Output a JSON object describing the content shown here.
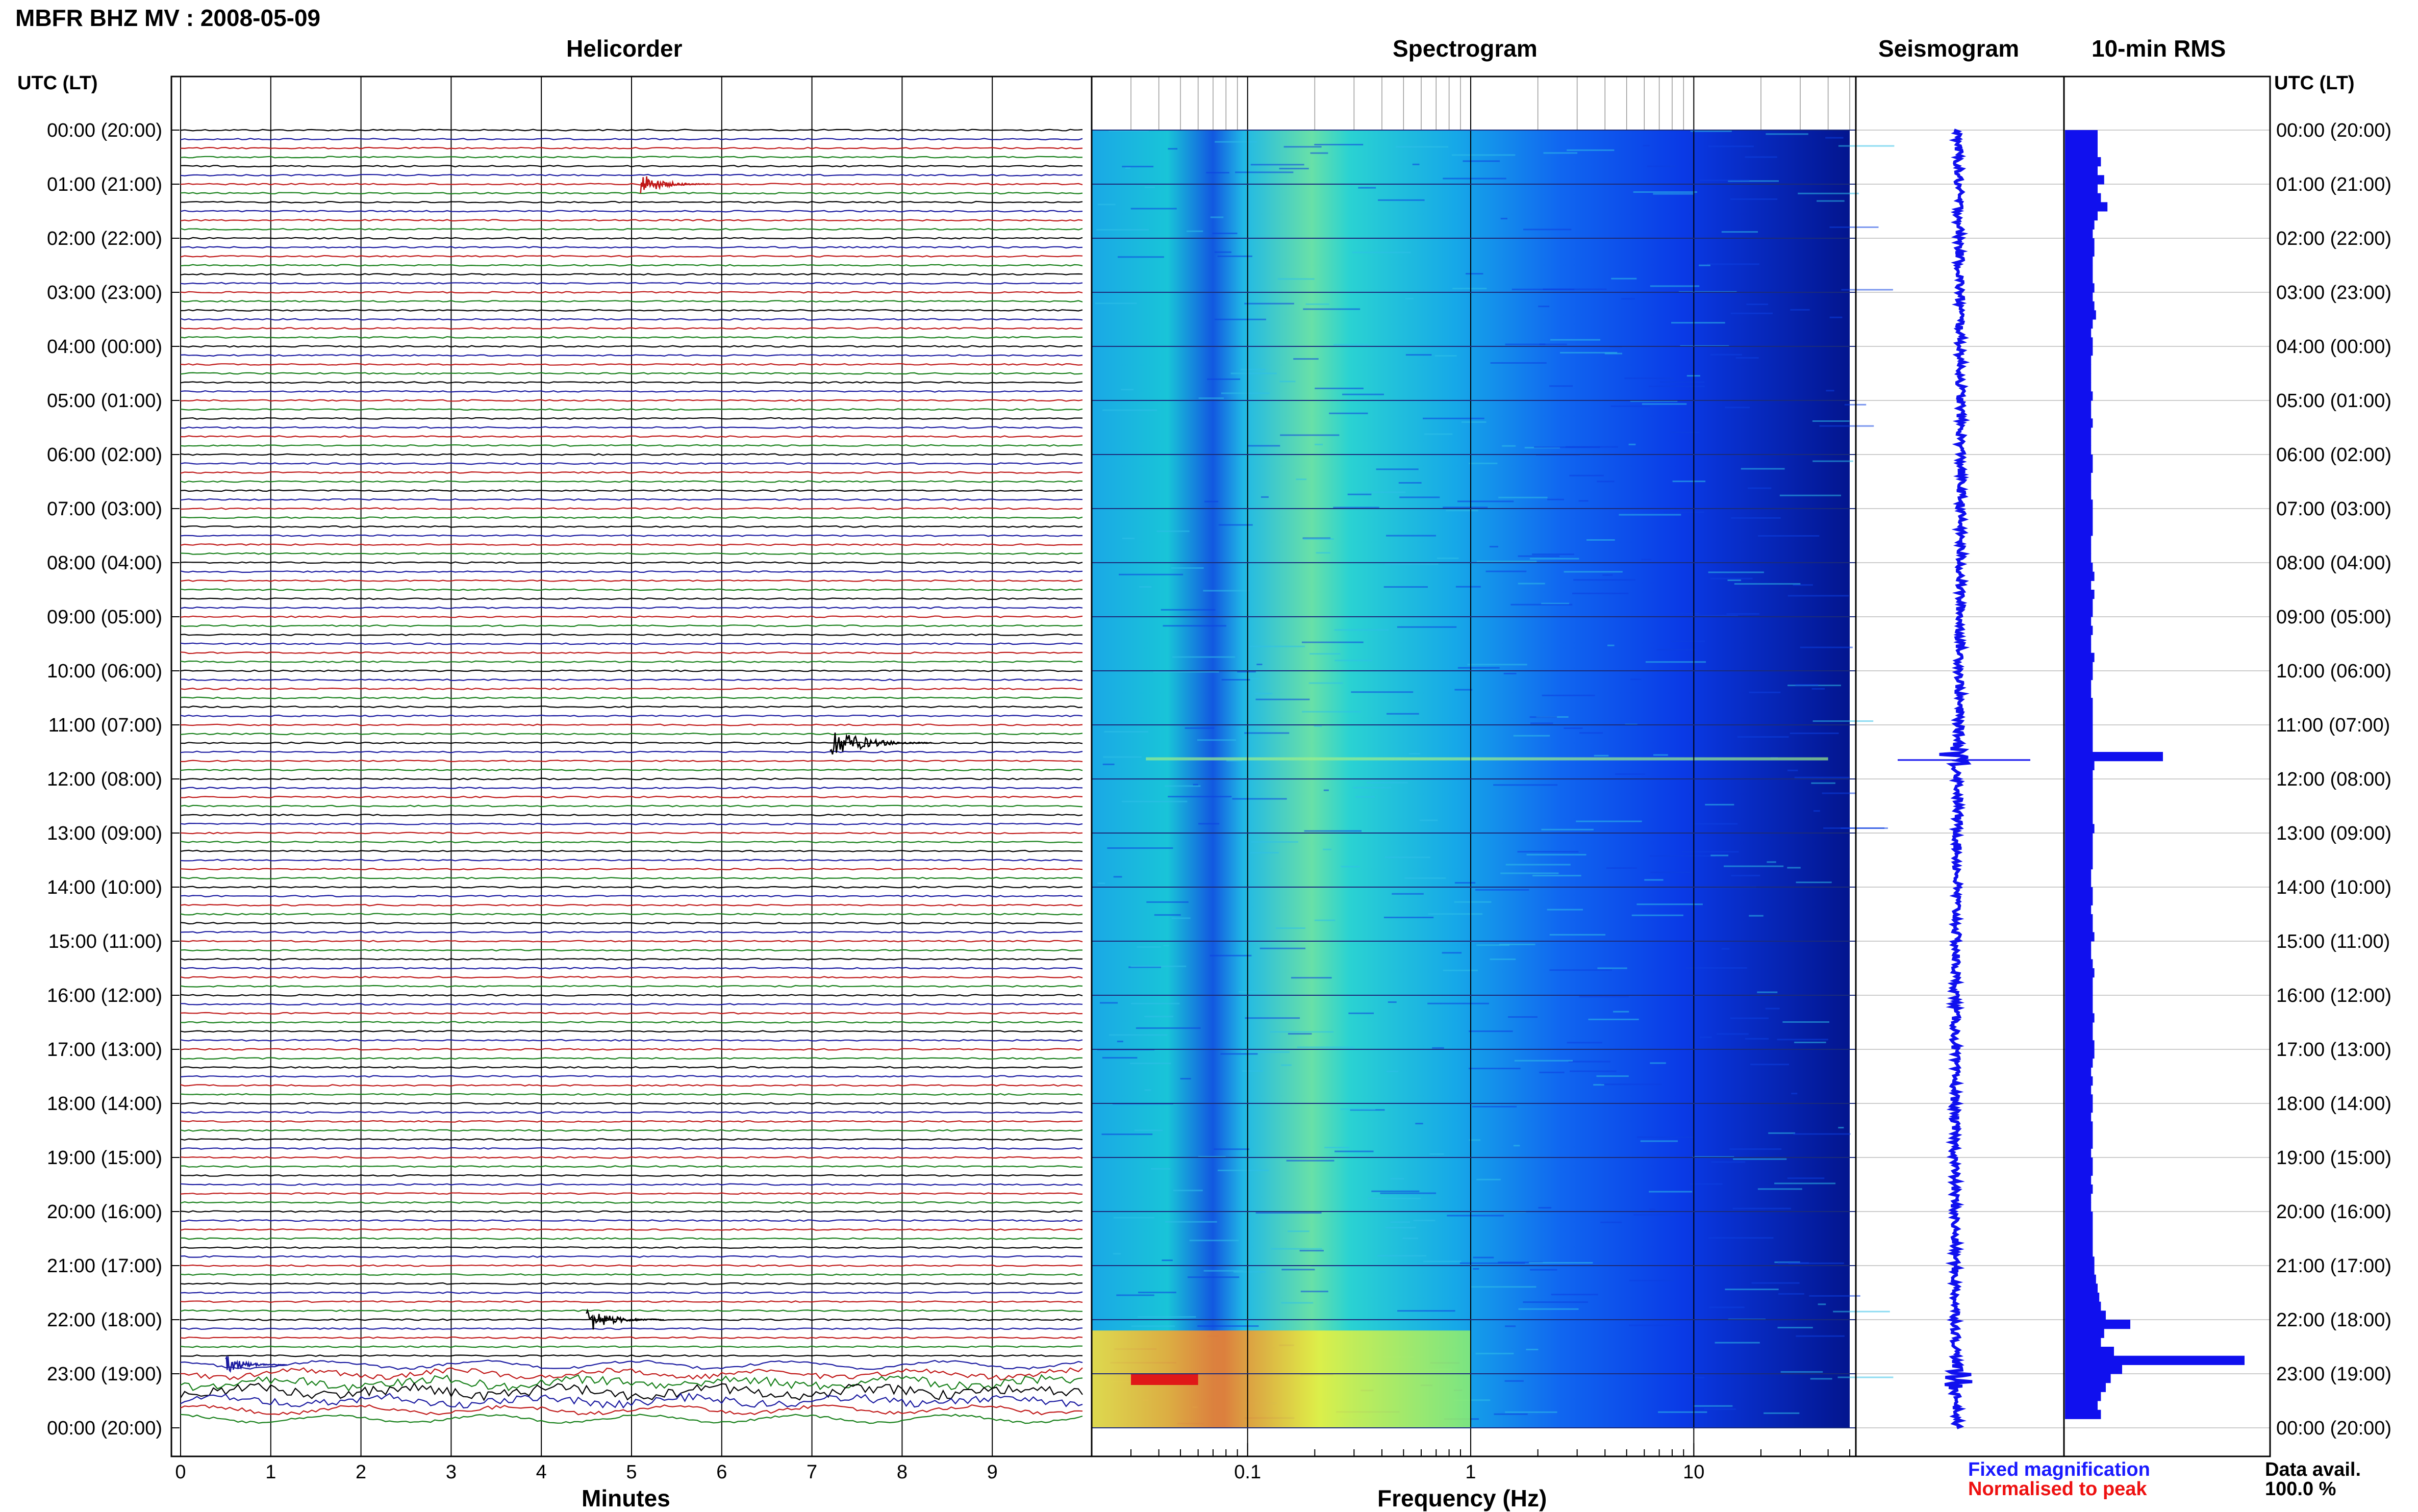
{
  "header": {
    "station_title": "MBFR BHZ MV : 2008-05-09"
  },
  "panels": {
    "helicorder": "Helicorder",
    "spectrogram": "Spectrogram",
    "seismogram": "Seismogram",
    "rms": "10-min RMS"
  },
  "axes": {
    "time_header": "UTC (LT)",
    "minutes_label": "Minutes",
    "frequency_label": "Frequency (Hz)"
  },
  "legend": {
    "fixed": "Fixed magnification",
    "normalised": "Normalised to peak",
    "avail_label": "Data avail.",
    "avail_value": "100.0 %"
  },
  "colors": {
    "fixed": "#1a1aff",
    "normalised": "#ee1111",
    "rms": "#1010ee",
    "trace_cycle": [
      "#000000",
      "#1a1aa0",
      "#c01818",
      "#18801a"
    ]
  },
  "chart_data": [
    {
      "type": "line",
      "name": "helicorder",
      "xlabel": "Minutes",
      "x_ticks": [
        0,
        1,
        2,
        3,
        4,
        5,
        6,
        7,
        8,
        9
      ],
      "xlim": [
        0,
        10
      ],
      "y_ticks": [
        "00:00 (20:00)",
        "01:00 (21:00)",
        "02:00 (22:00)",
        "03:00 (23:00)",
        "04:00 (00:00)",
        "05:00 (01:00)",
        "06:00 (02:00)",
        "07:00 (03:00)",
        "08:00 (04:00)",
        "09:00 (05:00)",
        "10:00 (06:00)",
        "11:00 (07:00)",
        "12:00 (08:00)",
        "13:00 (09:00)",
        "14:00 (10:00)",
        "15:00 (11:00)",
        "16:00 (12:00)",
        "17:00 (13:00)",
        "18:00 (14:00)",
        "19:00 (15:00)",
        "20:00 (16:00)",
        "21:00 (17:00)",
        "22:00 (18:00)",
        "23:00 (19:00)",
        "00:00 (20:00)"
      ],
      "traces_per_hour": 6,
      "events": [
        {
          "row": 6,
          "minute": 5.1,
          "amp": 0.6
        },
        {
          "row": 68,
          "minute": 7.2,
          "amp": 1.0
        },
        {
          "row": 132,
          "minute": 4.5,
          "amp": 0.7
        },
        {
          "row": 137,
          "minute": 0.5,
          "amp": 0.5
        }
      ]
    },
    {
      "type": "heatmap",
      "name": "spectrogram",
      "xlabel": "Frequency (Hz)",
      "x_scale": "log",
      "xlim": [
        0.02,
        50
      ],
      "x_ticks": [
        0.1,
        1,
        10
      ],
      "x_tick_labels": [
        "0.1",
        "1",
        "10"
      ]
    },
    {
      "type": "line",
      "name": "seismogram",
      "events_hours": [
        11.6,
        23.1
      ]
    },
    {
      "type": "bar",
      "name": "10-min RMS",
      "values": [
        0.2,
        0.2,
        0.2,
        0.22,
        0.2,
        0.24,
        0.2,
        0.22,
        0.26,
        0.2,
        0.18,
        0.17,
        0.18,
        0.18,
        0.17,
        0.17,
        0.17,
        0.18,
        0.17,
        0.18,
        0.19,
        0.17,
        0.16,
        0.17,
        0.17,
        0.16,
        0.16,
        0.16,
        0.16,
        0.17,
        0.16,
        0.16,
        0.17,
        0.16,
        0.16,
        0.16,
        0.17,
        0.17,
        0.16,
        0.16,
        0.16,
        0.17,
        0.17,
        0.17,
        0.17,
        0.16,
        0.16,
        0.16,
        0.17,
        0.18,
        0.16,
        0.18,
        0.17,
        0.17,
        0.16,
        0.17,
        0.16,
        0.16,
        0.18,
        0.17,
        0.17,
        0.16,
        0.16,
        0.17,
        0.17,
        0.17,
        0.17,
        0.17,
        0.17,
        0.6,
        0.18,
        0.17,
        0.17,
        0.17,
        0.17,
        0.17,
        0.17,
        0.18,
        0.17,
        0.17,
        0.17,
        0.17,
        0.16,
        0.16,
        0.17,
        0.17,
        0.16,
        0.17,
        0.17,
        0.18,
        0.16,
        0.16,
        0.17,
        0.18,
        0.17,
        0.17,
        0.17,
        0.17,
        0.18,
        0.17,
        0.17,
        0.18,
        0.18,
        0.17,
        0.16,
        0.17,
        0.16,
        0.17,
        0.17,
        0.16,
        0.17,
        0.17,
        0.17,
        0.16,
        0.17,
        0.17,
        0.16,
        0.17,
        0.16,
        0.16,
        0.17,
        0.17,
        0.17,
        0.17,
        0.17,
        0.18,
        0.18,
        0.19,
        0.2,
        0.21,
        0.22,
        0.25,
        0.4,
        0.24,
        0.22,
        0.3,
        1.1,
        0.35,
        0.28,
        0.25,
        0.22,
        0.2,
        0.22
      ]
    }
  ]
}
